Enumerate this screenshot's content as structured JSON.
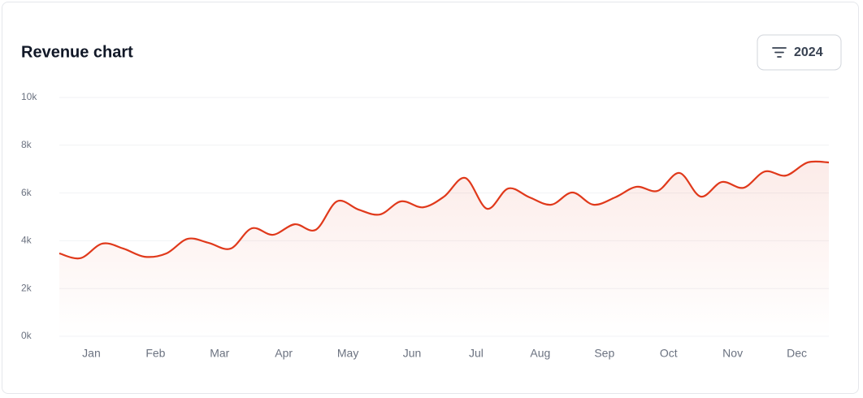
{
  "header": {
    "title": "Revenue chart",
    "filter_button": "2024"
  },
  "chart_data": {
    "type": "line",
    "x": [
      0.5,
      0.83,
      1.17,
      1.5,
      1.83,
      2.17,
      2.5,
      2.83,
      3.17,
      3.5,
      3.83,
      4.17,
      4.5,
      4.83,
      5.17,
      5.5,
      5.83,
      6.17,
      6.5,
      6.83,
      7.17,
      7.5,
      7.83,
      8.17,
      8.5,
      8.83,
      9.17,
      9.5,
      9.83,
      10.17,
      10.5,
      10.83,
      11.17,
      11.5,
      11.83,
      12.17,
      12.5
    ],
    "series": [
      {
        "name": "Revenue",
        "color": "#e0391b",
        "values": [
          3470,
          3270,
          3880,
          3670,
          3330,
          3470,
          4080,
          3910,
          3670,
          4520,
          4250,
          4690,
          4460,
          5650,
          5300,
          5100,
          5650,
          5400,
          5850,
          6630,
          5340,
          6190,
          5820,
          5510,
          6020,
          5510,
          5820,
          6260,
          6090,
          6840,
          5850,
          6460,
          6220,
          6900,
          6730,
          7280,
          7280
        ]
      }
    ],
    "xlim": [
      0.5,
      12.5
    ],
    "xticks": [
      {
        "value": 1,
        "label": "Jan"
      },
      {
        "value": 2,
        "label": "Feb"
      },
      {
        "value": 3,
        "label": "Mar"
      },
      {
        "value": 4,
        "label": "Apr"
      },
      {
        "value": 5,
        "label": "May"
      },
      {
        "value": 6,
        "label": "Jun"
      },
      {
        "value": 7,
        "label": "Jul"
      },
      {
        "value": 8,
        "label": "Aug"
      },
      {
        "value": 9,
        "label": "Sep"
      },
      {
        "value": 10,
        "label": "Oct"
      },
      {
        "value": 11,
        "label": "Nov"
      },
      {
        "value": 12,
        "label": "Dec"
      }
    ],
    "ylim": [
      0,
      10000
    ],
    "yticks": [
      {
        "value": 0,
        "label": "0k"
      },
      {
        "value": 2000,
        "label": "2k"
      },
      {
        "value": 4000,
        "label": "4k"
      },
      {
        "value": 6000,
        "label": "6k"
      },
      {
        "value": 8000,
        "label": "8k"
      },
      {
        "value": 10000,
        "label": "10k"
      }
    ],
    "grid": true
  }
}
